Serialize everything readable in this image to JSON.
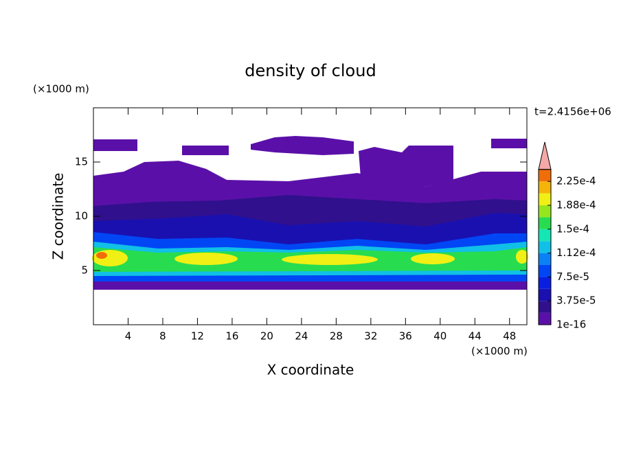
{
  "chart_data": {
    "type": "contour",
    "title": "density of cloud",
    "x_label": "X coordinate",
    "y_label": "Z coordinate",
    "x_unit": "(×1000 m)",
    "y_unit": "(×1000 m)",
    "time_label": "t=2.4156e+06",
    "xlim": [
      0,
      50
    ],
    "ylim": [
      0,
      20
    ],
    "xticks": [
      4,
      8,
      12,
      16,
      20,
      24,
      28,
      32,
      36,
      40,
      44,
      48
    ],
    "yticks": [
      5,
      10,
      15
    ],
    "colorbar": {
      "lim": [
        1e-16,
        0.00024375
      ],
      "ticks": [
        {
          "value": 1e-16,
          "label": "1e-16"
        },
        {
          "value": 3.75e-05,
          "label": "3.75e-5"
        },
        {
          "value": 7.5e-05,
          "label": "7.5e-5"
        },
        {
          "value": 0.0001125,
          "label": "1.12e-4"
        },
        {
          "value": 0.00015,
          "label": "1.5e-4"
        },
        {
          "value": 0.0001875,
          "label": "1.88e-4"
        },
        {
          "value": 0.000225,
          "label": "2.25e-4"
        }
      ],
      "colors": [
        "#5a10a8",
        "#30108c",
        "#1a10b0",
        "#0a1ee0",
        "#0046f5",
        "#0a82f5",
        "#10c0e6",
        "#14e6b4",
        "#28dc50",
        "#96e61e",
        "#f0f014",
        "#f5b40a",
        "#f06e0a"
      ],
      "over_color": "#f4a8a8"
    }
  }
}
